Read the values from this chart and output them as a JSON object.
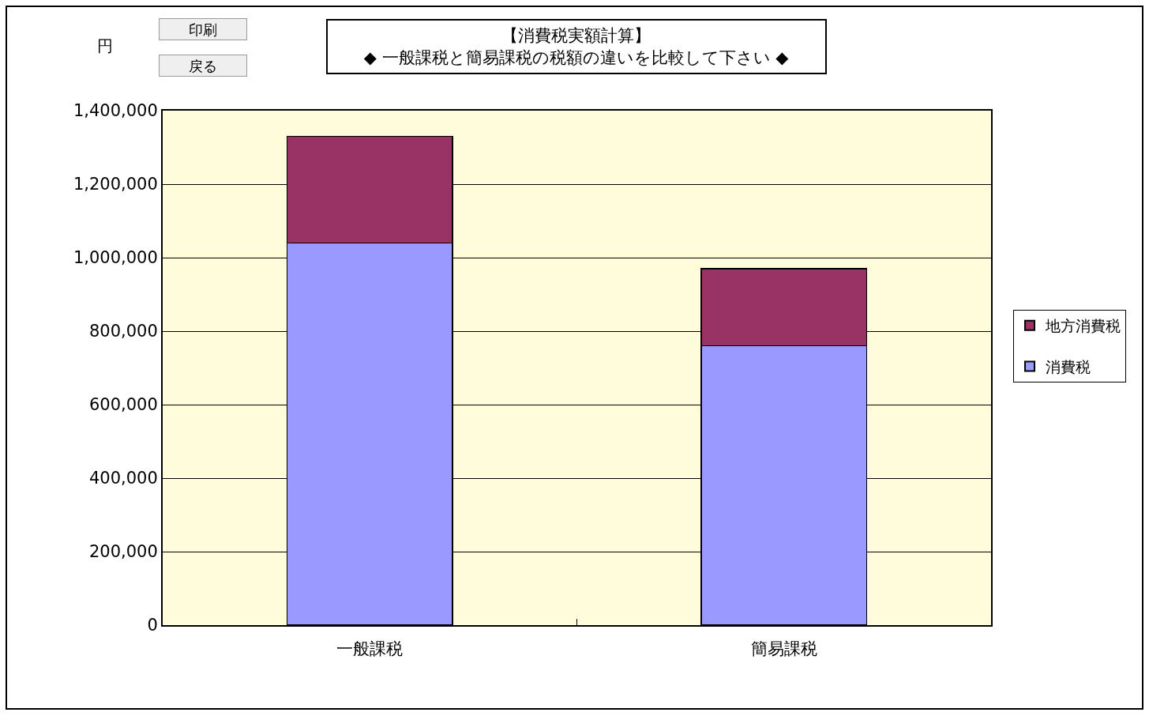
{
  "chart_data": {
    "type": "bar",
    "title": "【消費税実額計算】\n◆ 一般課税と簡易課税の税額の違いを比較して下さい ◆",
    "ylabel": "円",
    "annotations": [
      "印刷",
      "戻る"
    ],
    "categories": [
      "一般課税",
      "簡易課税"
    ],
    "stacked": true,
    "series": [
      {
        "name": "消費税",
        "color": "#9999ff",
        "values": [
          1040000,
          760000
        ]
      },
      {
        "name": "地方消費税",
        "color": "#993366",
        "values": [
          290000,
          210000
        ]
      }
    ],
    "ylim": [
      0,
      1400000
    ],
    "yticks": [
      0,
      {
        "value": 200000,
        "label": "200,000"
      },
      {
        "value": 400000,
        "label": "400,000"
      },
      {
        "value": 600000,
        "label": "600,000"
      },
      {
        "value": 800000,
        "label": "800,000"
      },
      {
        "value": 1000000,
        "label": "1,000,000"
      },
      {
        "value": 1200000,
        "label": "1,200,000"
      },
      {
        "value": 1400000,
        "label": "1,400,000"
      }
    ],
    "grid": "y",
    "legend": "right"
  }
}
